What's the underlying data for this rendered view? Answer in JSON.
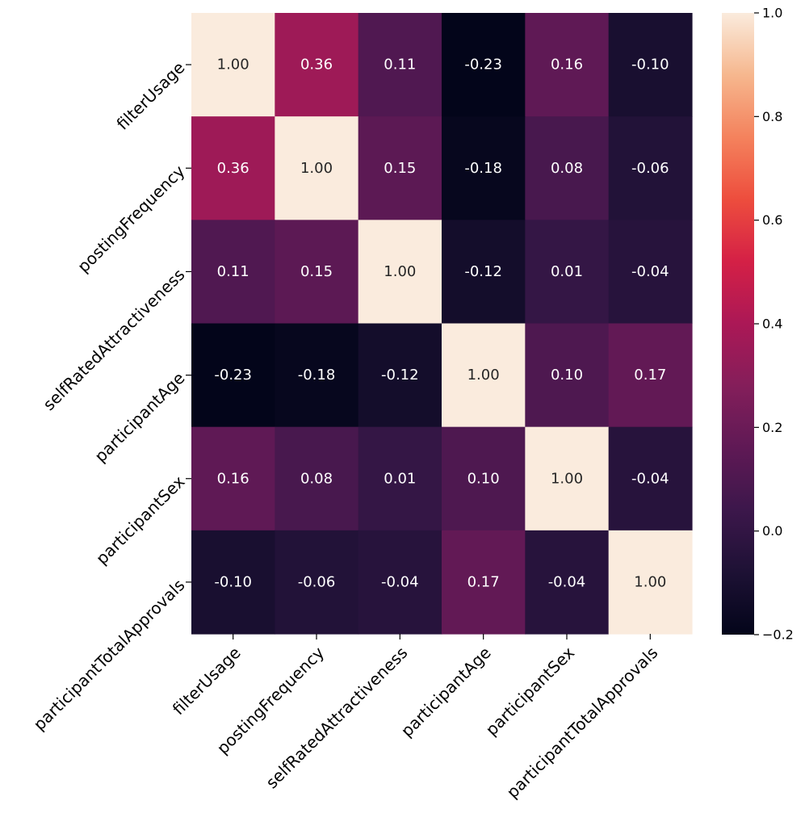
{
  "chart_data": {
    "type": "heatmap",
    "title": "",
    "xlabel": "",
    "ylabel": "",
    "x_categories": [
      "filterUsage",
      "postingFrequency",
      "selfRatedAttractiveness",
      "participantAge",
      "participantSex",
      "participantTotalApprovals"
    ],
    "y_categories": [
      "filterUsage",
      "postingFrequency",
      "selfRatedAttractiveness",
      "participantAge",
      "participantSex",
      "participantTotalApprovals"
    ],
    "values": [
      [
        1.0,
        0.36,
        0.11,
        -0.23,
        0.16,
        -0.1
      ],
      [
        0.36,
        1.0,
        0.15,
        -0.18,
        0.08,
        -0.06
      ],
      [
        0.11,
        0.15,
        1.0,
        -0.12,
        0.01,
        -0.04
      ],
      [
        -0.23,
        -0.18,
        -0.12,
        1.0,
        0.1,
        0.17
      ],
      [
        0.16,
        0.08,
        0.01,
        0.1,
        1.0,
        -0.04
      ],
      [
        -0.1,
        -0.06,
        -0.04,
        0.17,
        -0.04,
        1.0
      ]
    ],
    "annotation_format": "0.00",
    "colormap": "rocket",
    "colorbar": {
      "vmin": -0.2,
      "vmax": 1.0,
      "ticks": [
        -0.2,
        0.0,
        0.2,
        0.4,
        0.6,
        0.8,
        1.0
      ],
      "tick_labels": [
        "−0.2",
        "0.0",
        "0.2",
        "0.4",
        "0.6",
        "0.8",
        "1.0"
      ]
    },
    "text_colors": {
      "dark_cell_text": "#ffffff",
      "light_cell_text": "#262626"
    }
  }
}
